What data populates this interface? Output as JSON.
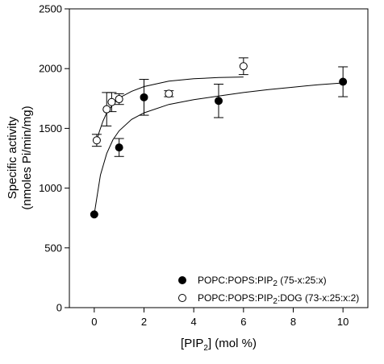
{
  "chart_data": {
    "type": "scatter",
    "xlabel": {
      "prefix": "[PIP",
      "sub": "2",
      "suffix": "]  (mol %)"
    },
    "ylabel_line1": "Specific activity",
    "ylabel_line2": "(nmoles Pi/min/mg)",
    "xlim": [
      -1,
      11
    ],
    "ylim": [
      0,
      2500
    ],
    "x_ticks": [
      0,
      2,
      4,
      6,
      8,
      10
    ],
    "y_ticks": [
      0,
      500,
      1000,
      1500,
      2000,
      2500
    ],
    "grid": false,
    "legend_position": "bottom-right",
    "series": [
      {
        "legend_parts": [
          "POPC:POPS:PIP",
          "2",
          " (75-x:25:x)",
          "",
          ""
        ],
        "marker": "filled-circle",
        "color": "#000000",
        "points": [
          {
            "x": 0,
            "y": 780,
            "err": 0
          },
          {
            "x": 1,
            "y": 1340,
            "err": 75
          },
          {
            "x": 2,
            "y": 1760,
            "err": 150
          },
          {
            "x": 5,
            "y": 1730,
            "err": 140
          },
          {
            "x": 10,
            "y": 1890,
            "err": 125
          }
        ],
        "fit": [
          [
            0,
            780
          ],
          [
            0.25,
            1110
          ],
          [
            0.5,
            1290
          ],
          [
            0.75,
            1405
          ],
          [
            1,
            1480
          ],
          [
            1.5,
            1575
          ],
          [
            2,
            1630
          ],
          [
            3,
            1700
          ],
          [
            4,
            1740
          ],
          [
            5,
            1770
          ],
          [
            6,
            1800
          ],
          [
            7,
            1825
          ],
          [
            8,
            1845
          ],
          [
            9,
            1865
          ],
          [
            10,
            1880
          ]
        ]
      },
      {
        "legend_parts": [
          "POPC:POPS:PIP",
          "2",
          ":DOG (73-x:25:x:2)",
          "",
          ""
        ],
        "marker": "open-circle",
        "color": "#000000",
        "points": [
          {
            "x": 0.1,
            "y": 1400,
            "err": 50
          },
          {
            "x": 0.5,
            "y": 1660,
            "err": 140
          },
          {
            "x": 0.7,
            "y": 1720,
            "err": 80
          },
          {
            "x": 1,
            "y": 1745,
            "err": 45
          },
          {
            "x": 3,
            "y": 1790,
            "err": 25
          },
          {
            "x": 6,
            "y": 2020,
            "err": 70
          }
        ],
        "fit": [
          [
            0.1,
            1395
          ],
          [
            0.2,
            1470
          ],
          [
            0.35,
            1560
          ],
          [
            0.5,
            1630
          ],
          [
            0.75,
            1700
          ],
          [
            1,
            1755
          ],
          [
            1.5,
            1810
          ],
          [
            2,
            1850
          ],
          [
            3,
            1895
          ],
          [
            4,
            1915
          ],
          [
            5,
            1925
          ],
          [
            6,
            1930
          ]
        ]
      }
    ]
  }
}
